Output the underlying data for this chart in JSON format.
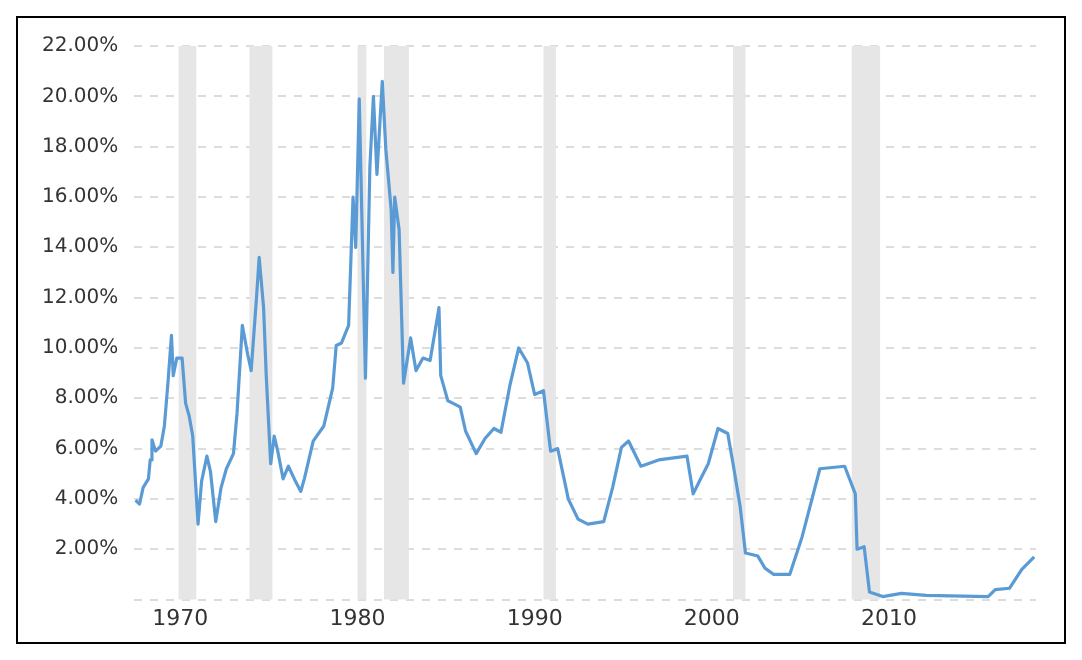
{
  "chart_data": {
    "type": "line",
    "x": [
      1967.47,
      1967.7,
      1967.9,
      1968.2,
      1968.3,
      1968.4,
      1968.6,
      1968.9,
      1969.1,
      1969.3,
      1969.5,
      1969.6,
      1969.8,
      1970.1,
      1970.3,
      1970.5,
      1970.7,
      1971.0,
      1971.2,
      1971.5,
      1971.7,
      1972.0,
      1972.3,
      1972.6,
      1973.0,
      1973.2,
      1973.5,
      1973.8,
      1974.0,
      1974.3,
      1974.45,
      1974.7,
      1974.85,
      1975.1,
      1975.3,
      1975.5,
      1975.8,
      1976.1,
      1976.5,
      1976.8,
      1977.0,
      1977.5,
      1978.1,
      1978.6,
      1978.8,
      1979.1,
      1979.5,
      1979.75,
      1979.9,
      1980.1,
      1980.45,
      1980.7,
      1980.9,
      1981.1,
      1981.4,
      1981.6,
      1981.9,
      1982.0,
      1982.1,
      1982.35,
      1982.6,
      1983.0,
      1983.3,
      1983.7,
      1984.1,
      1984.6,
      1984.7,
      1985.1,
      1985.4,
      1985.8,
      1986.1,
      1986.7,
      1987.2,
      1987.7,
      1988.1,
      1988.6,
      1989.1,
      1989.6,
      1990.0,
      1990.5,
      1990.9,
      1991.3,
      1991.9,
      1992.45,
      1993.0,
      1993.9,
      1994.4,
      1994.9,
      1995.3,
      1996.0,
      1997.0,
      1998.6,
      1998.95,
      1999.3,
      1999.8,
      2000.35,
      2000.9,
      2001.2,
      2001.6,
      2001.9,
      2002.6,
      2003.0,
      2003.5,
      2004.4,
      2005.1,
      2006.1,
      2007.5,
      2008.1,
      2008.2,
      2008.6,
      2008.9,
      2009.65,
      2010.7,
      2012.1,
      2015.6,
      2016.0,
      2016.8,
      2017.5,
      2018.2
    ],
    "series": [
      {
        "color": "#5b9bd5",
        "values": [
          3.95,
          3.8,
          4.45,
          4.8,
          5.55,
          6.35,
          5.9,
          6.1,
          6.9,
          8.6,
          10.5,
          8.9,
          9.6,
          9.6,
          7.8,
          7.3,
          6.5,
          3.0,
          4.7,
          5.7,
          5.1,
          3.1,
          4.45,
          5.2,
          5.8,
          7.4,
          10.9,
          9.75,
          9.1,
          12.0,
          13.6,
          11.6,
          8.9,
          5.4,
          6.5,
          5.9,
          4.8,
          5.3,
          4.7,
          4.3,
          4.8,
          6.3,
          6.9,
          8.4,
          10.1,
          10.2,
          10.9,
          16.0,
          14.0,
          19.9,
          8.8,
          17.2,
          20.0,
          16.9,
          20.6,
          17.9,
          15.5,
          13.0,
          16.0,
          14.7,
          8.6,
          10.4,
          9.1,
          9.6,
          9.5,
          11.6,
          8.9,
          7.9,
          7.8,
          7.65,
          6.7,
          5.8,
          6.4,
          6.8,
          6.65,
          8.5,
          10.0,
          9.4,
          8.15,
          8.3,
          5.9,
          6.0,
          4.0,
          3.2,
          3.0,
          3.1,
          4.45,
          6.05,
          6.3,
          5.3,
          5.55,
          5.7,
          4.2,
          4.7,
          5.4,
          6.8,
          6.6,
          5.4,
          3.7,
          1.85,
          1.73,
          1.25,
          1.0,
          1.0,
          2.5,
          5.2,
          5.3,
          4.2,
          2.0,
          2.1,
          0.3,
          0.12,
          0.25,
          0.17,
          0.12,
          0.4,
          0.45,
          1.2,
          1.7
        ]
      }
    ],
    "xlim": [
      1967.4,
      2018.3
    ],
    "xticks": [
      1970,
      1980,
      1990,
      2000,
      2010
    ],
    "ylim": [
      0,
      22
    ],
    "yticks": [
      {
        "value": 0,
        "label": null
      },
      {
        "value": 2,
        "label": "2.00%"
      },
      {
        "value": 4,
        "label": "4.00%"
      },
      {
        "value": 6,
        "label": "6.00%"
      },
      {
        "value": 8,
        "label": "8.00%"
      },
      {
        "value": 10,
        "label": "10.00%"
      },
      {
        "value": 12,
        "label": "12.00%"
      },
      {
        "value": 14,
        "label": "14.00%"
      },
      {
        "value": 16,
        "label": "16.00%"
      },
      {
        "value": 18,
        "label": "18.00%"
      },
      {
        "value": 20,
        "label": "20.00%"
      },
      {
        "value": 22,
        "label": "22.00%"
      }
    ],
    "bands": [
      {
        "axis": "x",
        "from": 1969.9,
        "to": 1970.9,
        "color": "#e6e6e6"
      },
      {
        "axis": "x",
        "from": 1973.9,
        "to": 1975.2,
        "color": "#e6e6e6"
      },
      {
        "axis": "x",
        "from": 1980.0,
        "to": 1980.5,
        "color": "#e6e6e6"
      },
      {
        "axis": "x",
        "from": 1981.5,
        "to": 1982.9,
        "color": "#e6e6e6"
      },
      {
        "axis": "x",
        "from": 1990.5,
        "to": 1991.2,
        "color": "#e6e6e6"
      },
      {
        "axis": "x",
        "from": 2001.2,
        "to": 2001.9,
        "color": "#e6e6e6"
      },
      {
        "axis": "x",
        "from": 2007.9,
        "to": 2009.5,
        "color": "#e6e6e6"
      }
    ],
    "grid": "y",
    "legend": false,
    "marker": "none",
    "line_style": "solid"
  }
}
